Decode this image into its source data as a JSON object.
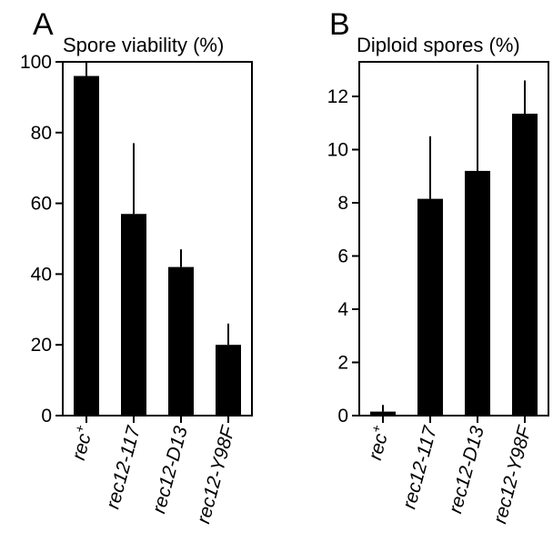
{
  "chart_data": [
    {
      "type": "bar",
      "panel": "A",
      "title": "Spore viability (%)",
      "xlabel": "",
      "ylabel": "",
      "categories": [
        {
          "label": "rec",
          "sup": "+"
        },
        {
          "label": "rec12-117",
          "sup": ""
        },
        {
          "label": "rec12-D13",
          "sup": ""
        },
        {
          "label": "rec12-Y98F",
          "sup": ""
        }
      ],
      "values": [
        96,
        57,
        42,
        20
      ],
      "error_upper": [
        100,
        77,
        47,
        26
      ],
      "ylim": [
        0,
        100
      ],
      "yticks": [
        0,
        20,
        40,
        60,
        80,
        100
      ],
      "bar_color": "#000000"
    },
    {
      "type": "bar",
      "panel": "B",
      "title": "Diploid spores (%)",
      "xlabel": "",
      "ylabel": "",
      "categories": [
        {
          "label": "rec",
          "sup": "+"
        },
        {
          "label": "rec12-117",
          "sup": ""
        },
        {
          "label": "rec12-D13",
          "sup": ""
        },
        {
          "label": "rec12-Y98F",
          "sup": ""
        }
      ],
      "values": [
        0.15,
        8.15,
        9.2,
        11.35
      ],
      "error_upper": [
        0.4,
        10.5,
        13.2,
        12.6
      ],
      "ylim": [
        0,
        13.3
      ],
      "yticks": [
        0,
        2,
        4,
        6,
        8,
        10,
        12
      ],
      "bar_color": "#000000"
    }
  ]
}
